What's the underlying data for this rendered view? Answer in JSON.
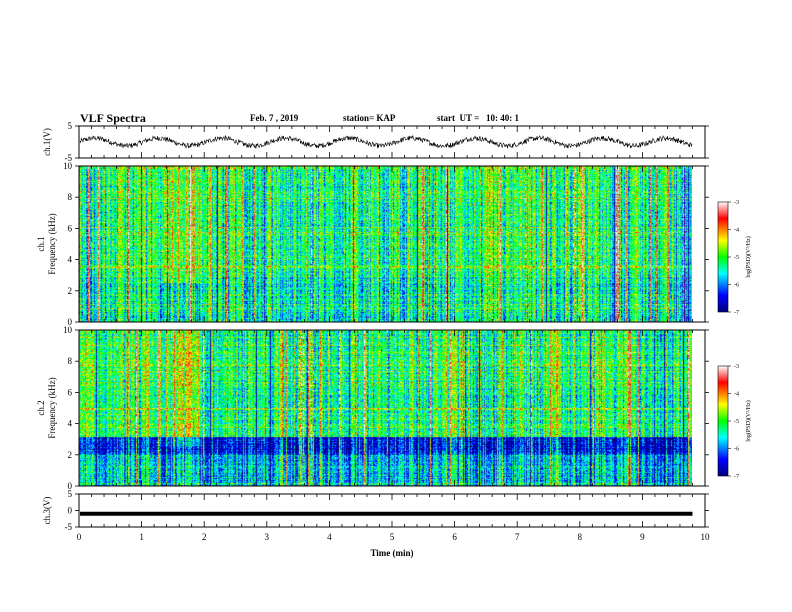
{
  "header": {
    "title": "VLF Spectra",
    "date": "Feb. 7 , 2019",
    "station": "station= KAP",
    "start": "start  UT =   10: 40: 1"
  },
  "chart_data": [
    {
      "type": "line",
      "panel": "ch1-waveform",
      "ylabel": "ch.1(V)",
      "ylim": [
        -5,
        5
      ],
      "yticks": [
        "5",
        "-5"
      ],
      "xlim": [
        0,
        10
      ],
      "description_values": {
        "baseline": 0,
        "amplitude": 1.2
      }
    },
    {
      "type": "heatmap",
      "panel": "ch1-spectrogram",
      "ylabel_line1": "ch.1",
      "ylabel_line2": "Frequency (kHz)",
      "ylim": [
        0,
        10
      ],
      "yticks": [
        "0",
        "2",
        "4",
        "6",
        "8",
        "10"
      ],
      "xlim": [
        0,
        9.8
      ],
      "colorbar": {
        "label": "log(PSD)(V²/Hz)",
        "range": [
          -7,
          -3
        ],
        "ticks": [
          "-3",
          "-4",
          "-5",
          "-6",
          "-7"
        ]
      }
    },
    {
      "type": "heatmap",
      "panel": "ch2-spectrogram",
      "ylabel_line1": "ch.2",
      "ylabel_line2": "Frequency (kHz)",
      "ylim": [
        0,
        10
      ],
      "yticks": [
        "0",
        "2",
        "4",
        "6",
        "8",
        "10"
      ],
      "xlim": [
        0,
        9.8
      ],
      "colorbar": {
        "label": "log(PSD)(V²/Hz)",
        "range": [
          -7,
          -3
        ],
        "ticks": [
          "-3",
          "-4",
          "-5",
          "-6",
          "-7"
        ]
      }
    },
    {
      "type": "line",
      "panel": "ch3-waveform",
      "ylabel": "ch.3(V)",
      "ylim": [
        -5,
        5
      ],
      "yticks": [
        "5",
        "0",
        "-5"
      ],
      "xlim": [
        0,
        10
      ],
      "constant_value": -1
    }
  ],
  "xaxis": {
    "label": "Time (min)",
    "ticks": [
      "0",
      "1",
      "2",
      "3",
      "4",
      "5",
      "6",
      "7",
      "8",
      "9",
      "10"
    ]
  },
  "colors": {
    "line": "#000000",
    "background": "#ffffff"
  }
}
